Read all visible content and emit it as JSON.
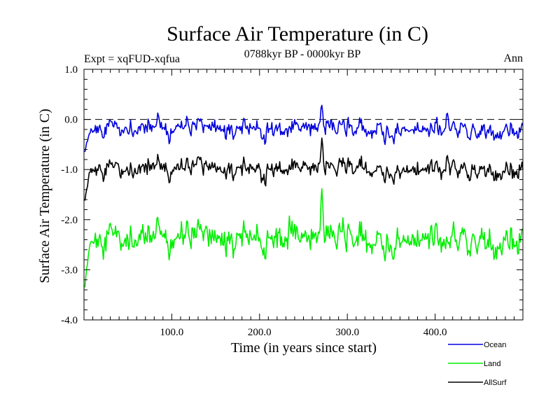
{
  "chart_data": {
    "type": "line",
    "title": "Surface Air Temperature (in C)",
    "subtitle_left": "Expt = xqFUD-xqfua",
    "subtitle_center": "0788kyr BP - 0000kyr BP",
    "subtitle_right": "Ann",
    "xlabel": "Time (in years since start)",
    "ylabel": "Surface Air Temperature (in C)",
    "xlim": [
      0,
      500
    ],
    "ylim": [
      -4.0,
      1.0
    ],
    "xticks": [
      100,
      200,
      300,
      400
    ],
    "xtick_labels": [
      "100.0",
      "200.0",
      "300.0",
      "400.0"
    ],
    "yticks": [
      1.0,
      0.0,
      -1.0,
      -2.0,
      -3.0,
      -4.0
    ],
    "ytick_labels": [
      "1.0",
      "0.0",
      "-1.0",
      "-2.0",
      "-3.0",
      "-4.0"
    ],
    "reference_line": 0.0,
    "series": [
      {
        "name": "Ocean",
        "color": "#0000dd",
        "mean": -0.2,
        "noise": 0.13,
        "start": -0.65,
        "peaks": [
          [
            270,
            0.2
          ],
          [
            413,
            0.22
          ],
          [
            395,
            0.05
          ]
        ]
      },
      {
        "name": "Land",
        "color": "#00ee00",
        "mean": -2.4,
        "noise": 0.2,
        "start": -3.35,
        "peaks": [
          [
            270,
            -1.6
          ],
          [
            233,
            -2.0
          ],
          [
            395,
            -1.9
          ]
        ]
      },
      {
        "name": "AllSurf",
        "color": "#000000",
        "mean": -1.0,
        "noise": 0.13,
        "start": -1.62,
        "peaks": [
          [
            270,
            -0.48
          ],
          [
            413,
            -0.62
          ],
          [
            395,
            -0.72
          ]
        ]
      }
    ],
    "legend": [
      "Ocean",
      "Land",
      "AllSurf"
    ],
    "legend_position": "bottom-right"
  }
}
